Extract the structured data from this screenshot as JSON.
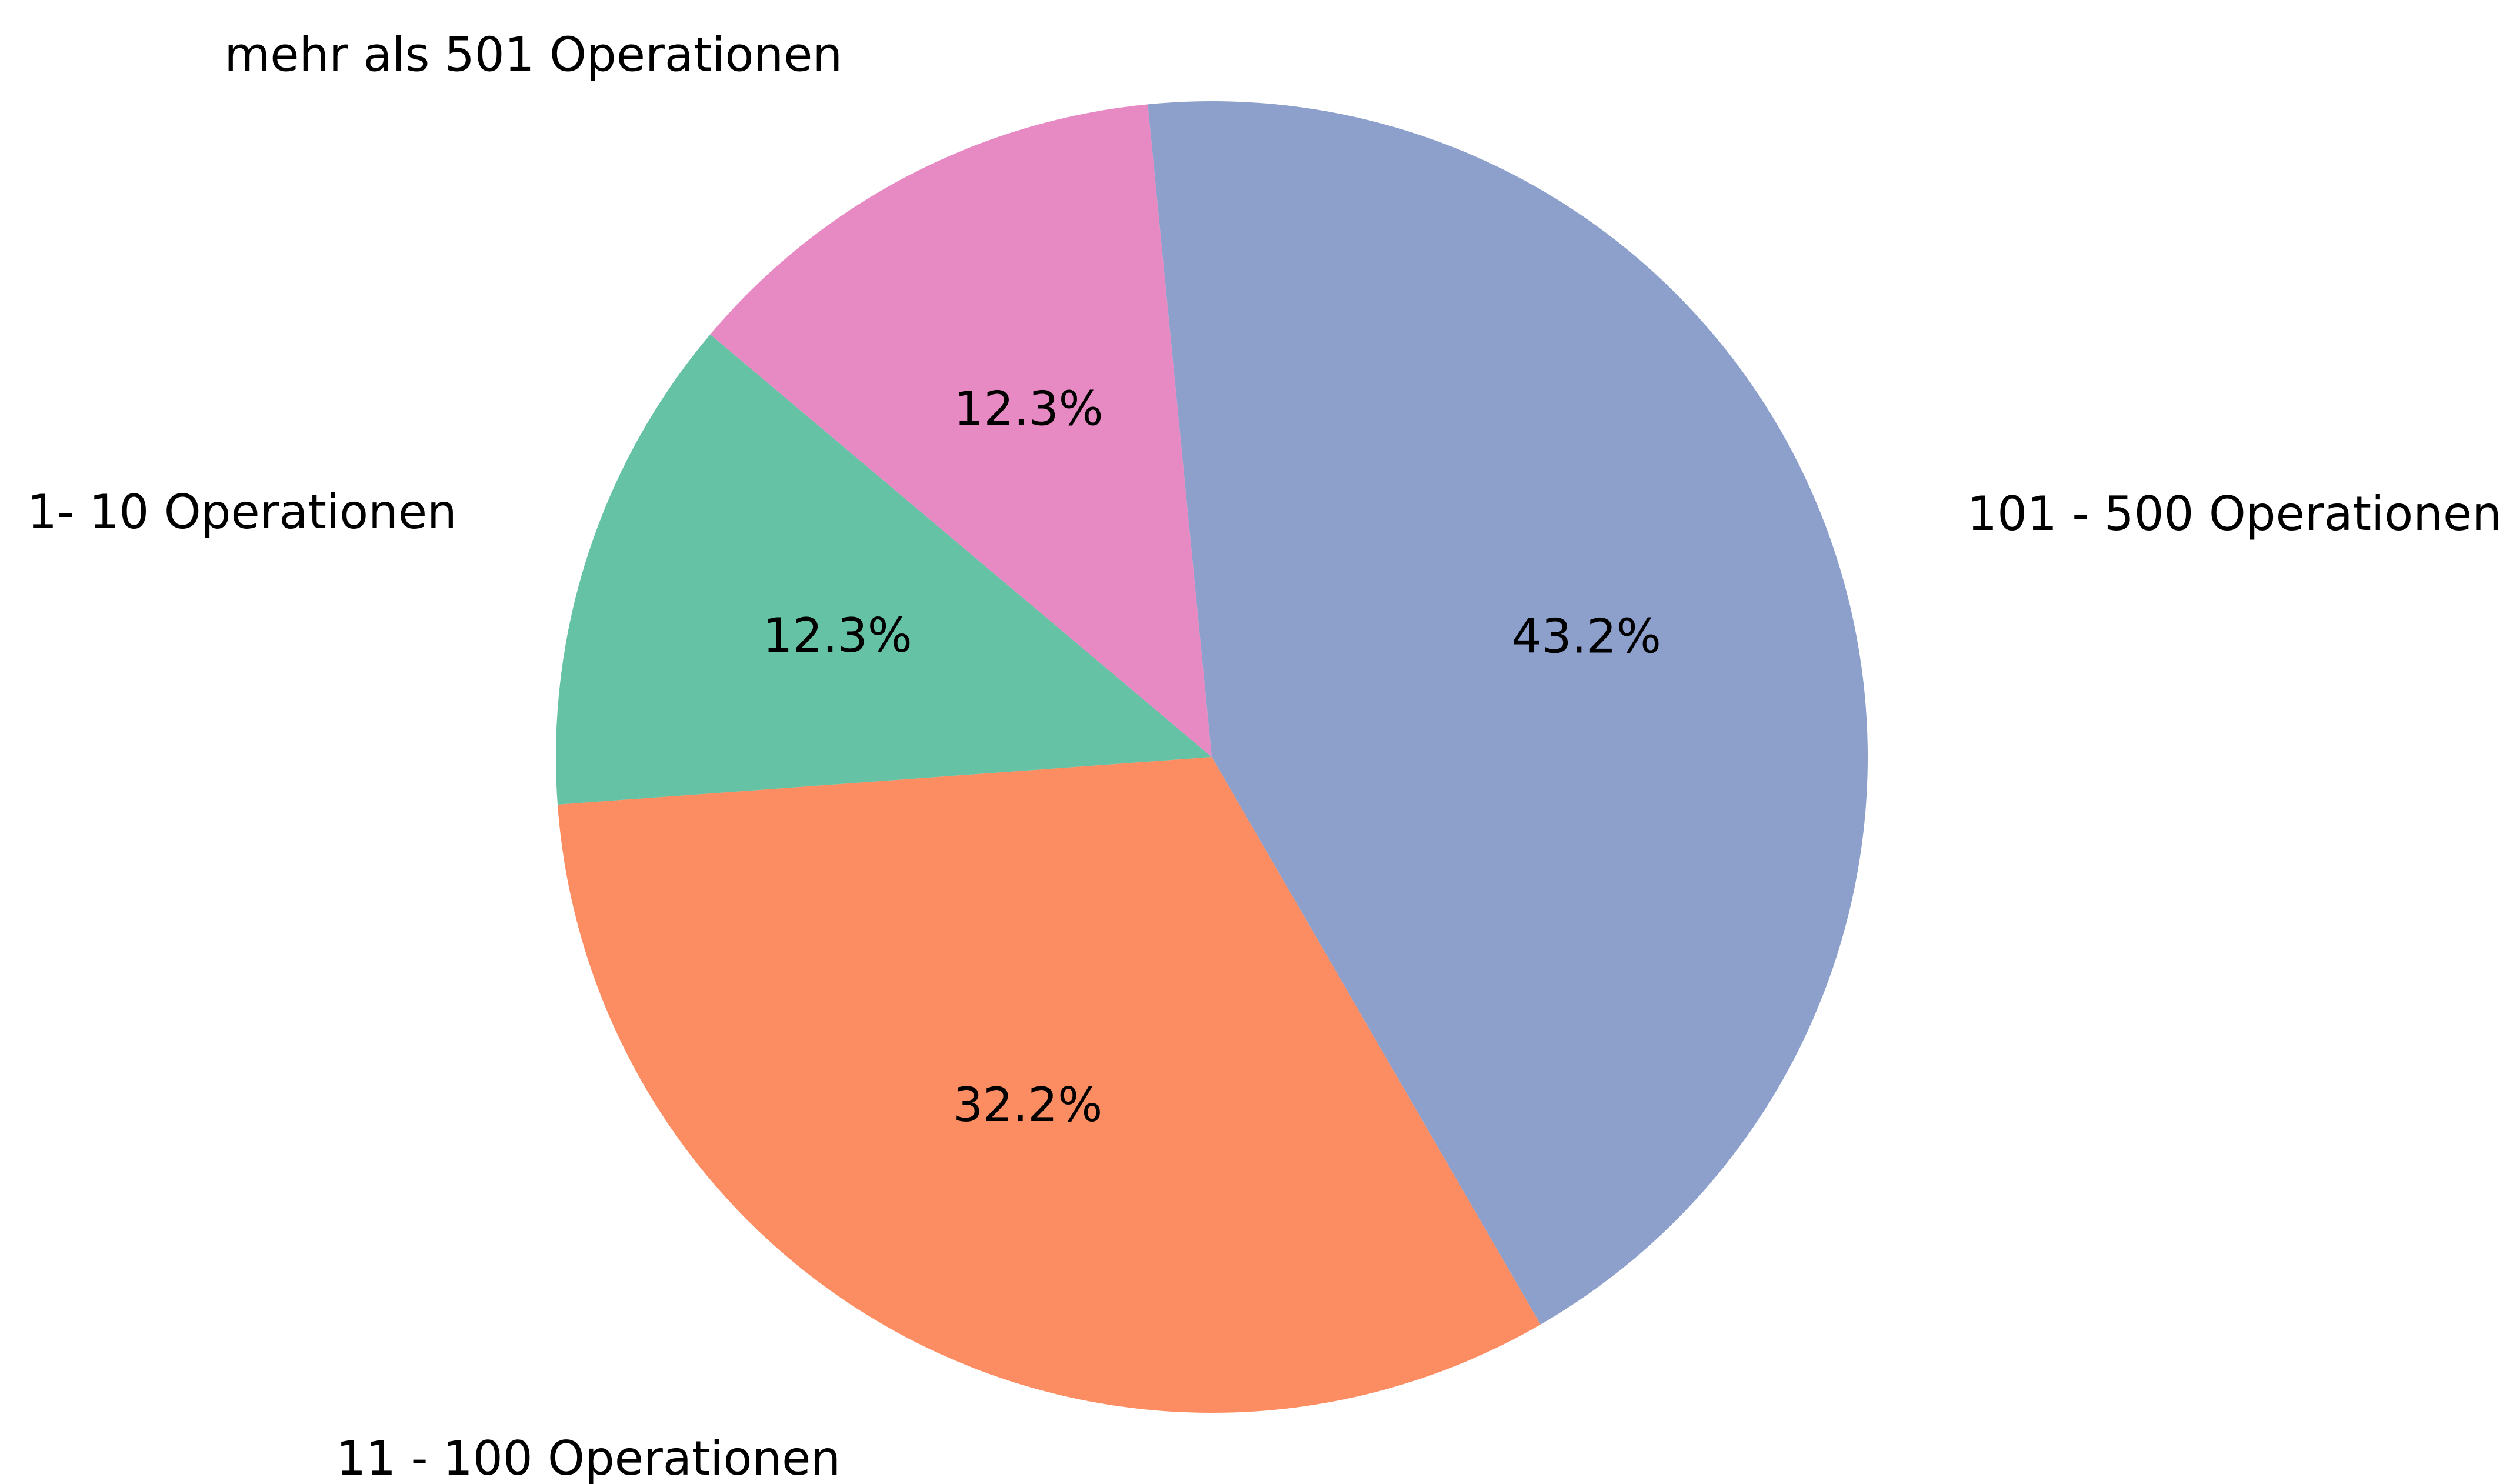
{
  "chart_data": {
    "type": "pie",
    "title": "",
    "slices": [
      {
        "label": "101 - 500 Operationen",
        "value": 43.2,
        "pct_label": "43.2%",
        "color": "#8da0cb"
      },
      {
        "label": "11 - 100 Operationen",
        "value": 32.2,
        "pct_label": "32.2%",
        "color": "#fc8d62"
      },
      {
        "label": "1- 10 Operationen",
        "value": 12.3,
        "pct_label": "12.3%",
        "color": "#66c2a5"
      },
      {
        "label": "mehr als 501 Operationen",
        "value": 12.3,
        "pct_label": "12.3%",
        "color": "#e78ac3"
      }
    ],
    "legend": "none",
    "start": "top",
    "direction": "clockwise"
  }
}
